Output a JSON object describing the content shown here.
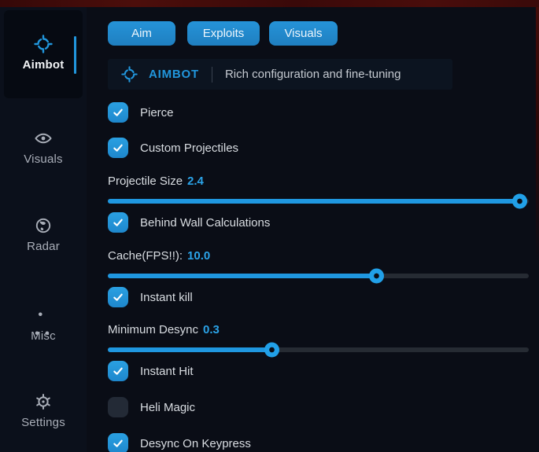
{
  "colors": {
    "accent": "#2196dc",
    "value_blue": "#2ba3e8",
    "bg": "#0a0d16",
    "sidebar_bg": "#0b101b",
    "header_bg": "#0c1420",
    "red_edge": "#4a0d0b",
    "unchecked_box": "#232a36"
  },
  "sidebar": {
    "items": [
      {
        "label": "Aimbot",
        "icon": "crosshair-icon",
        "active": true
      },
      {
        "label": "Visuals",
        "icon": "eye-icon",
        "active": false
      },
      {
        "label": "Radar",
        "icon": "globe-icon",
        "active": false
      },
      {
        "label": "Misc",
        "icon": "dots-icon",
        "active": false
      },
      {
        "label": "Settings",
        "icon": "gear-icon",
        "active": false
      }
    ]
  },
  "tabs": [
    {
      "label": "Aim",
      "active": true
    },
    {
      "label": "Exploits",
      "active": true
    },
    {
      "label": "Visuals",
      "active": true
    }
  ],
  "header": {
    "title": "AIMBOT",
    "subtitle": "Rich configuration and fine-tuning"
  },
  "controls": [
    {
      "type": "checkbox",
      "label": "Pierce",
      "checked": true
    },
    {
      "type": "checkbox",
      "label": "Custom Projectiles",
      "checked": true
    },
    {
      "type": "slider",
      "label": "Projectile Size",
      "value": "2.4",
      "percent": 98
    },
    {
      "type": "checkbox",
      "label": "Behind Wall Calculations",
      "checked": true
    },
    {
      "type": "slider",
      "label": "Cache(FPS!!):",
      "value": "10.0",
      "percent": 64
    },
    {
      "type": "checkbox",
      "label": "Instant kill",
      "checked": true
    },
    {
      "type": "slider",
      "label": "Minimum Desync",
      "value": "0.3",
      "percent": 39
    },
    {
      "type": "checkbox",
      "label": "Instant Hit",
      "checked": true
    },
    {
      "type": "checkbox",
      "label": "Heli Magic",
      "checked": false
    },
    {
      "type": "checkbox",
      "label": "Desync On Keypress",
      "checked": true
    }
  ]
}
